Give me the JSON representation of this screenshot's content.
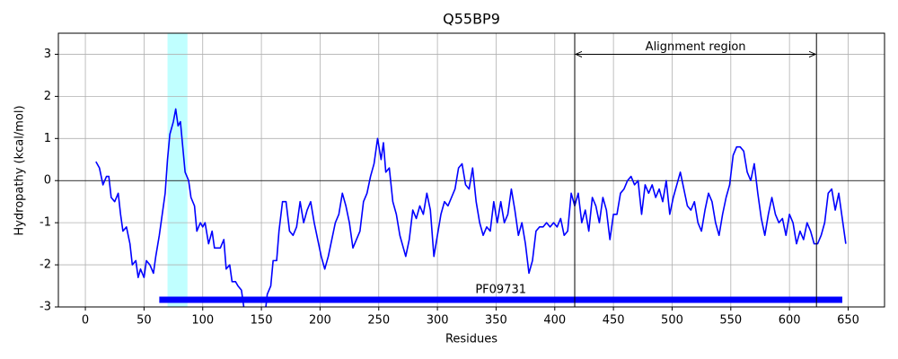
{
  "chart_data": {
    "type": "line",
    "title": "Q55BP9",
    "x_label": "Residues",
    "y_label": "Hydropathy (kcal/mol)",
    "color": "#0000ff",
    "grid": true,
    "hline": 0,
    "xlim": [
      -23,
      681
    ],
    "ylim": [
      -3,
      3.5
    ],
    "xticks": [
      0,
      50,
      100,
      150,
      200,
      250,
      300,
      350,
      400,
      450,
      500,
      550,
      600,
      650
    ],
    "yticks": [
      -3,
      -2,
      -1,
      0,
      1,
      2,
      3
    ],
    "highlight": {
      "start": 70,
      "end": 87,
      "color": "#c0ffff"
    },
    "alignment_region": {
      "label": "Alignment region",
      "start": 417,
      "end": 623,
      "y": 3
    },
    "domains": [
      {
        "label": "PF09731",
        "start": 63,
        "end": 645,
        "y": -2.83,
        "color": "#0000ff"
      }
    ],
    "x": [
      9,
      12,
      15,
      18,
      20,
      22,
      25,
      28,
      30,
      32,
      35,
      38,
      40,
      43,
      45,
      47,
      50,
      52,
      55,
      58,
      60,
      63,
      66,
      68,
      70,
      72,
      75,
      77,
      79,
      81,
      83,
      85,
      88,
      90,
      93,
      95,
      98,
      100,
      102,
      105,
      108,
      110,
      115,
      118,
      120,
      123,
      125,
      128,
      130,
      133,
      135,
      137,
      145,
      153,
      155,
      158,
      160,
      163,
      165,
      168,
      171,
      174,
      177,
      180,
      183,
      186,
      189,
      192,
      195,
      198,
      201,
      204,
      207,
      210,
      213,
      216,
      219,
      222,
      225,
      228,
      231,
      234,
      237,
      240,
      243,
      246,
      249,
      252,
      254,
      256,
      259,
      262,
      265,
      268,
      271,
      273,
      276,
      279,
      282,
      285,
      288,
      291,
      294,
      297,
      300,
      303,
      306,
      309,
      312,
      315,
      318,
      321,
      324,
      327,
      330,
      333,
      336,
      339,
      342,
      345,
      348,
      351,
      354,
      357,
      360,
      363,
      366,
      369,
      372,
      375,
      378,
      381,
      384,
      387,
      390,
      393,
      396,
      399,
      402,
      405,
      408,
      411,
      414,
      417,
      420,
      423,
      426,
      429,
      432,
      435,
      438,
      441,
      444,
      447,
      450,
      453,
      456,
      459,
      462,
      465,
      468,
      471,
      474,
      477,
      480,
      483,
      486,
      489,
      492,
      495,
      498,
      501,
      504,
      507,
      510,
      513,
      516,
      519,
      522,
      525,
      528,
      531,
      534,
      537,
      540,
      543,
      546,
      549,
      552,
      555,
      558,
      561,
      564,
      567,
      570,
      573,
      576,
      579,
      582,
      585,
      588,
      591,
      594,
      597,
      600,
      603,
      606,
      609,
      612,
      615,
      618,
      621,
      624,
      627,
      630,
      633,
      636,
      639,
      642,
      645,
      648
    ],
    "values": [
      0.45,
      0.3,
      -0.1,
      0.1,
      0.1,
      -0.4,
      -0.5,
      -0.3,
      -0.8,
      -1.2,
      -1.1,
      -1.5,
      -2.0,
      -1.9,
      -2.3,
      -2.1,
      -2.3,
      -1.9,
      -2.0,
      -2.2,
      -1.8,
      -1.3,
      -0.7,
      -0.3,
      0.5,
      1.1,
      1.4,
      1.7,
      1.3,
      1.4,
      0.8,
      0.2,
      0,
      -0.4,
      -0.6,
      -1.2,
      -1.0,
      -1.1,
      -1.0,
      -1.5,
      -1.2,
      -1.6,
      -1.6,
      -1.4,
      -2.1,
      -2.0,
      -2.4,
      -2.4,
      -2.5,
      -2.6,
      -3.0,
      -3.3,
      -3.5,
      -3.2,
      -2.7,
      -2.5,
      -1.9,
      -1.9,
      -1.2,
      -0.5,
      -0.5,
      -1.2,
      -1.3,
      -1.1,
      -0.5,
      -1.0,
      -0.7,
      -0.5,
      -1.0,
      -1.4,
      -1.8,
      -2.1,
      -1.8,
      -1.4,
      -1.0,
      -0.8,
      -0.3,
      -0.6,
      -1.0,
      -1.6,
      -1.4,
      -1.2,
      -0.5,
      -0.3,
      0.1,
      0.4,
      1.0,
      0.5,
      0.9,
      0.2,
      0.3,
      -0.5,
      -0.8,
      -1.3,
      -1.6,
      -1.8,
      -1.4,
      -0.7,
      -0.9,
      -0.6,
      -0.8,
      -0.3,
      -0.7,
      -1.8,
      -1.3,
      -0.8,
      -0.5,
      -0.6,
      -0.4,
      -0.2,
      0.3,
      0.4,
      -0.1,
      -0.2,
      0.3,
      -0.5,
      -1.0,
      -1.3,
      -1.1,
      -1.2,
      -0.5,
      -1.0,
      -0.5,
      -1.0,
      -0.8,
      -0.2,
      -0.7,
      -1.3,
      -1.0,
      -1.5,
      -2.2,
      -1.9,
      -1.2,
      -1.1,
      -1.1,
      -1.0,
      -1.1,
      -1.0,
      -1.1,
      -0.9,
      -1.3,
      -1.2,
      -0.3,
      -0.6,
      -0.3,
      -1.0,
      -0.7,
      -1.2,
      -0.4,
      -0.6,
      -1.0,
      -0.4,
      -0.7,
      -1.4,
      -0.8,
      -0.8,
      -0.3,
      -0.2,
      0,
      0.1,
      -0.1,
      0,
      -0.8,
      -0.1,
      -0.3,
      -0.1,
      -0.4,
      -0.2,
      -0.5,
      0,
      -0.8,
      -0.4,
      -0.1,
      0.2,
      -0.2,
      -0.6,
      -0.7,
      -0.5,
      -1.0,
      -1.2,
      -0.7,
      -0.3,
      -0.5,
      -1.0,
      -1.3,
      -0.8,
      -0.4,
      -0.1,
      0.6,
      0.8,
      0.8,
      0.7,
      0.2,
      0,
      0.4,
      -0.3,
      -0.9,
      -1.3,
      -0.8,
      -0.4,
      -0.8,
      -1.0,
      -0.9,
      -1.3,
      -0.8,
      -1.0,
      -1.5,
      -1.2,
      -1.4,
      -1.0,
      -1.2,
      -1.5,
      -1.5,
      -1.3,
      -1.0,
      -0.3,
      -0.2,
      -0.7,
      -0.3,
      -0.9,
      -1.5
    ]
  }
}
